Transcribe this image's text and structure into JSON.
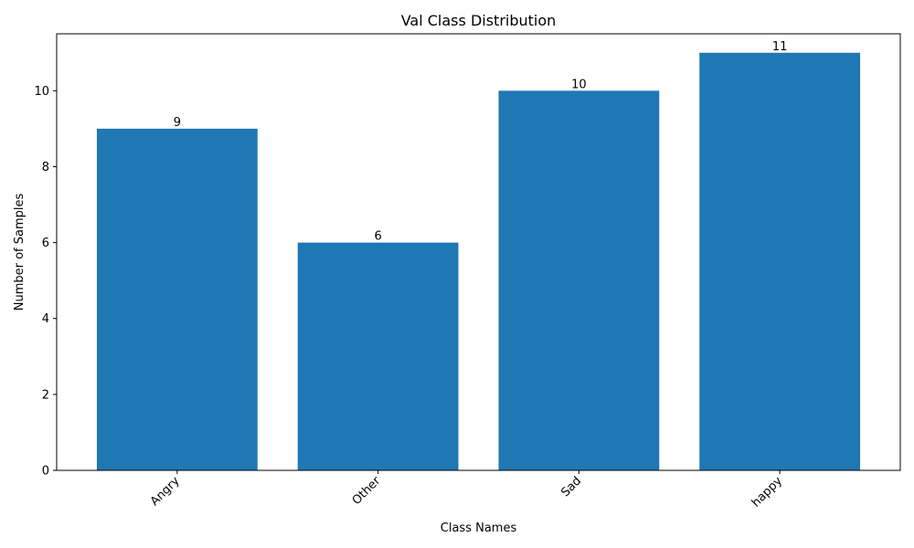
{
  "chart_data": {
    "type": "bar",
    "title": "Val Class Distribution",
    "xlabel": "Class Names",
    "ylabel": "Number of Samples",
    "categories": [
      "Angry",
      "Other",
      "Sad",
      "happy"
    ],
    "values": [
      9,
      6,
      10,
      11
    ],
    "ylim": [
      0,
      11.5
    ],
    "yticks": [
      0,
      2,
      4,
      6,
      8,
      10
    ],
    "grid": false,
    "legend": "none",
    "bar_color": "#1f77b4",
    "data_labels": [
      "9",
      "6",
      "10",
      "11"
    ]
  }
}
